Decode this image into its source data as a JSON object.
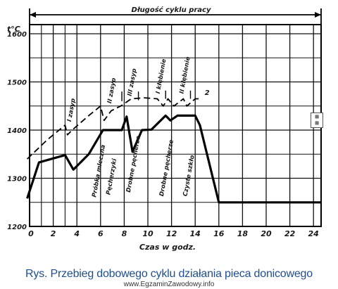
{
  "chart_data": {
    "type": "line",
    "top_label": "Długość cyklu pracy",
    "ylabel": "t°C",
    "xlabel": "Czas w godz.",
    "x_ticks": [
      0,
      2,
      4,
      6,
      8,
      10,
      12,
      14,
      16,
      18,
      20,
      22,
      24
    ],
    "y_ticks": [
      1200,
      1300,
      1400,
      1500,
      1600
    ],
    "xlim": [
      0,
      24.6
    ],
    "ylim": [
      1200,
      1620
    ],
    "grid": true,
    "series": [
      {
        "name": "",
        "style": "solid",
        "x": [
          -0.2,
          0.8,
          3.0,
          3.7,
          5.0,
          6.2,
          7.8,
          8.2,
          8.7,
          9.5,
          10.3,
          11.5,
          11.9,
          12.5,
          14.0,
          14.4,
          16.0,
          24.6
        ],
        "y": [
          1258,
          1333,
          1348,
          1318,
          1350,
          1400,
          1400,
          1428,
          1355,
          1400,
          1401,
          1430,
          1420,
          1430,
          1430,
          1410,
          1250,
          1250
        ]
      },
      {
        "name": "",
        "style": "dashed",
        "x": [
          -0.2,
          1.5,
          3.0,
          3.2,
          3.6,
          5.0,
          6.0,
          6.3,
          6.9,
          7.7,
          8.6,
          9.7,
          10.8,
          11.3,
          11.7,
          12.2,
          13.0,
          13.3,
          14.0,
          14.4
        ],
        "y": [
          1340,
          1380,
          1410,
          1390,
          1400,
          1430,
          1450,
          1420,
          1440,
          1450,
          1465,
          1467,
          1465,
          1450,
          1465,
          1450,
          1465,
          1450,
          1465,
          1465
        ]
      }
    ],
    "annotations": [
      {
        "text": "I zasyp",
        "x": 3.5,
        "y": 1417
      },
      {
        "text": "II zasyp",
        "x": 6.9,
        "y": 1455
      },
      {
        "text": "III zasyp",
        "x": 8.6,
        "y": 1470
      },
      {
        "text": "I kłębienie",
        "x": 11.0,
        "y": 1475
      },
      {
        "text": "II kłębienie",
        "x": 13.0,
        "y": 1475
      },
      {
        "text": "2",
        "x": 14.8,
        "y": 1473
      },
      {
        "text": "Próbka mleczna",
        "x": 5.6,
        "y": 1260
      },
      {
        "text": "Pęcherzyki",
        "x": 6.8,
        "y": 1265
      },
      {
        "text": "Drobne pęcherze",
        "x": 8.5,
        "y": 1270
      },
      {
        "text": "Drobne pęcherze",
        "x": 11.3,
        "y": 1262
      },
      {
        "text": "Czyste szkło",
        "x": 13.3,
        "y": 1262
      }
    ]
  },
  "caption": "Rys. Przebieg dobowego cyklu  działania pieca donicowego",
  "watermark": "www.EgzaminZawodowy.info"
}
